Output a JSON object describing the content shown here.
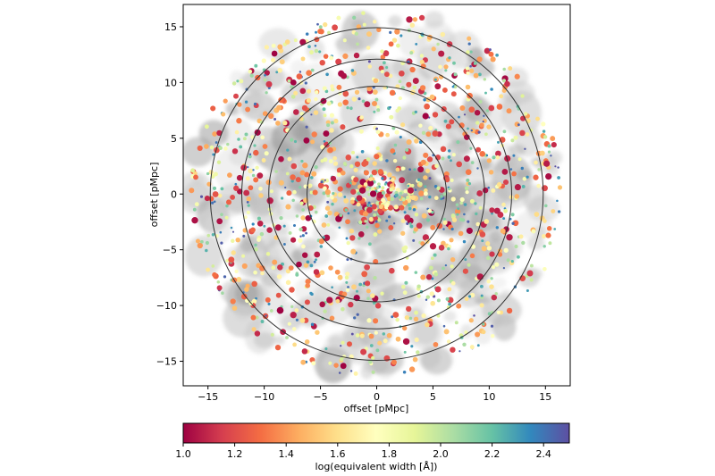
{
  "chart_data": {
    "type": "scatter",
    "title": "",
    "xlabel": "offset [pMpc]",
    "ylabel": "offset [pMpc]",
    "xlim": [
      -17.2,
      17.2
    ],
    "ylim": [
      -17.2,
      17.0
    ],
    "xticks": [
      -15,
      -10,
      -5,
      0,
      5,
      10,
      15
    ],
    "xtick_labels": [
      "−15",
      "−10",
      "−5",
      "0",
      "5",
      "10",
      "15"
    ],
    "yticks": [
      -15,
      -10,
      -5,
      0,
      5,
      10,
      15
    ],
    "ytick_labels": [
      "−15",
      "−10",
      "−5",
      "0",
      "5",
      "10",
      "15"
    ],
    "grid": false,
    "circles": [
      {
        "radius": 6.2
      },
      {
        "radius": 9.6
      },
      {
        "radius": 12.0
      },
      {
        "radius": 14.8
      }
    ],
    "field_radius": 16.5,
    "colorbar": {
      "label": "log(equivalent width [Å])",
      "min": 1.0,
      "max": 2.5,
      "ticks": [
        1.0,
        1.2,
        1.4,
        1.6,
        1.8,
        2.0,
        2.2,
        2.4
      ],
      "tick_labels": [
        "1.0",
        "1.2",
        "1.4",
        "1.6",
        "1.8",
        "2.0",
        "2.2",
        "2.4"
      ],
      "colormap": "Spectral",
      "colors": [
        "#9e0142",
        "#d53e4f",
        "#f46d43",
        "#fdae61",
        "#fee08b",
        "#ffffbf",
        "#e6f598",
        "#abdda4",
        "#66c2a5",
        "#3288bd",
        "#5e4fa2"
      ]
    },
    "background_density_color": "#bdbdbd",
    "n_points": 1400
  }
}
